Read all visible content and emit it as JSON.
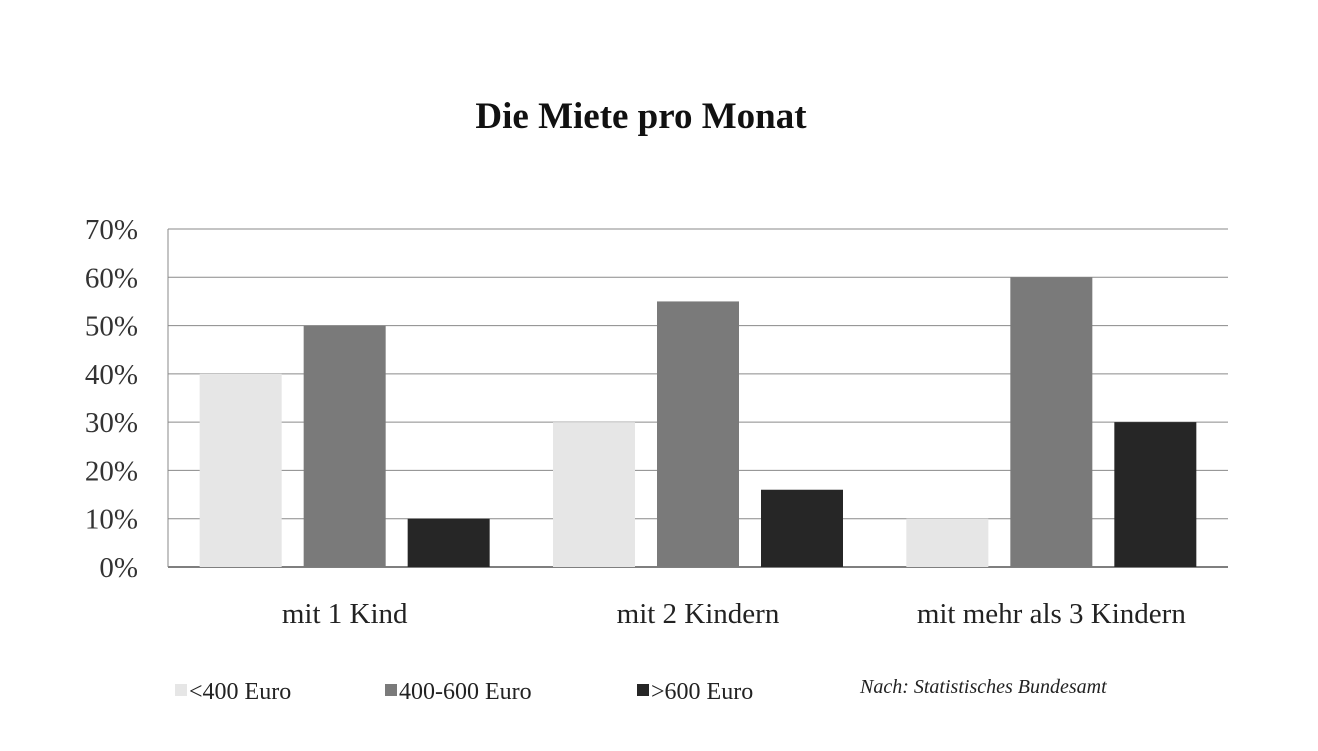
{
  "chart_data": {
    "type": "bar",
    "title": "Die Miete pro Monat",
    "categories": [
      "mit 1 Kind",
      "mit 2 Kindern",
      "mit mehr als 3 Kindern"
    ],
    "series": [
      {
        "name": "<400 Euro",
        "values": [
          40,
          30,
          10
        ],
        "color": "#e6e6e6"
      },
      {
        "name": "400-600 Euro",
        "values": [
          50,
          55,
          60
        ],
        "color": "#7a7a7a"
      },
      {
        "name": ">600 Euro",
        "values": [
          10,
          16,
          30
        ],
        "color": "#262626"
      }
    ],
    "ylim": [
      0,
      70
    ],
    "yticks": [
      0,
      10,
      20,
      30,
      40,
      50,
      60,
      70
    ],
    "ytick_labels": [
      "0%",
      "10%",
      "20%",
      "30%",
      "40%",
      "50%",
      "60%",
      "70%"
    ],
    "xlabel": "",
    "ylabel": "",
    "grid": true,
    "legend_position": "bottom",
    "source": "Nach: Statistisches Bundesamt"
  }
}
